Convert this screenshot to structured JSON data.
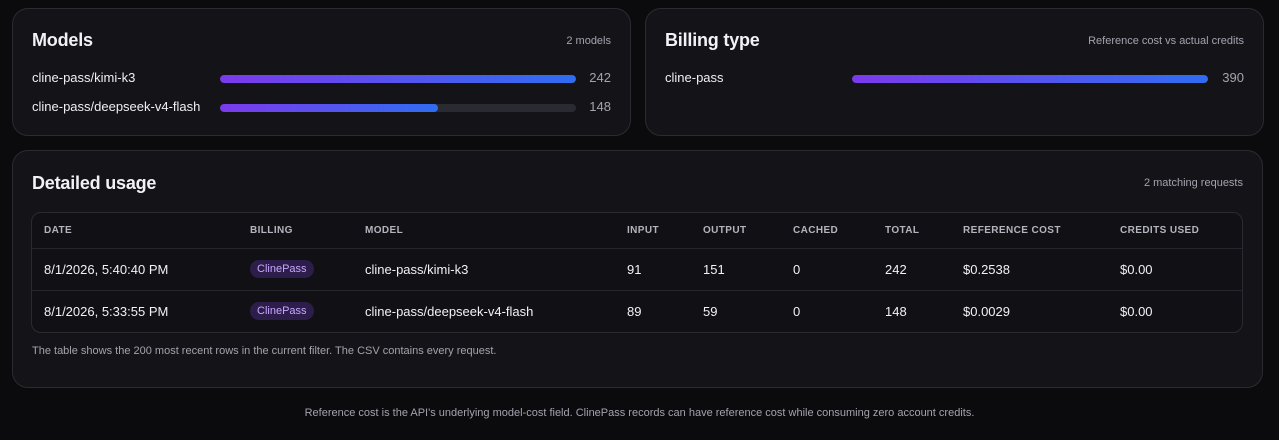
{
  "models": {
    "title": "Models",
    "summary": "2 models",
    "items": [
      {
        "name": "cline-pass/kimi-k3",
        "value": 242
      },
      {
        "name": "cline-pass/deepseek-v4-flash",
        "value": 148
      }
    ]
  },
  "billing": {
    "title": "Billing type",
    "summary": "Reference cost vs actual credits",
    "items": [
      {
        "name": "cline-pass",
        "value": 390
      }
    ]
  },
  "usage": {
    "title": "Detailed usage",
    "summary": "2 matching requests",
    "table": {
      "columns": [
        "DATE",
        "BILLING",
        "MODEL",
        "INPUT",
        "OUTPUT",
        "CACHED",
        "TOTAL",
        "REFERENCE COST",
        "CREDITS USED"
      ],
      "rows": [
        [
          "8/1/2026, 5:40:40 PM",
          "ClinePass",
          "cline-pass/kimi-k3",
          91,
          151,
          0,
          242,
          "$0.2538",
          "$0.00"
        ],
        [
          "8/1/2026, 5:33:55 PM",
          "ClinePass",
          "cline-pass/deepseek-v4-flash",
          89,
          59,
          0,
          148,
          "$0.0029",
          "$0.00"
        ]
      ]
    },
    "note": "The table shows the 200 most recent rows in the current filter. The CSV contains every request."
  },
  "footer": "Reference cost is the API's underlying model-cost field. ClinePass records can have reference cost while consuming zero account credits."
}
